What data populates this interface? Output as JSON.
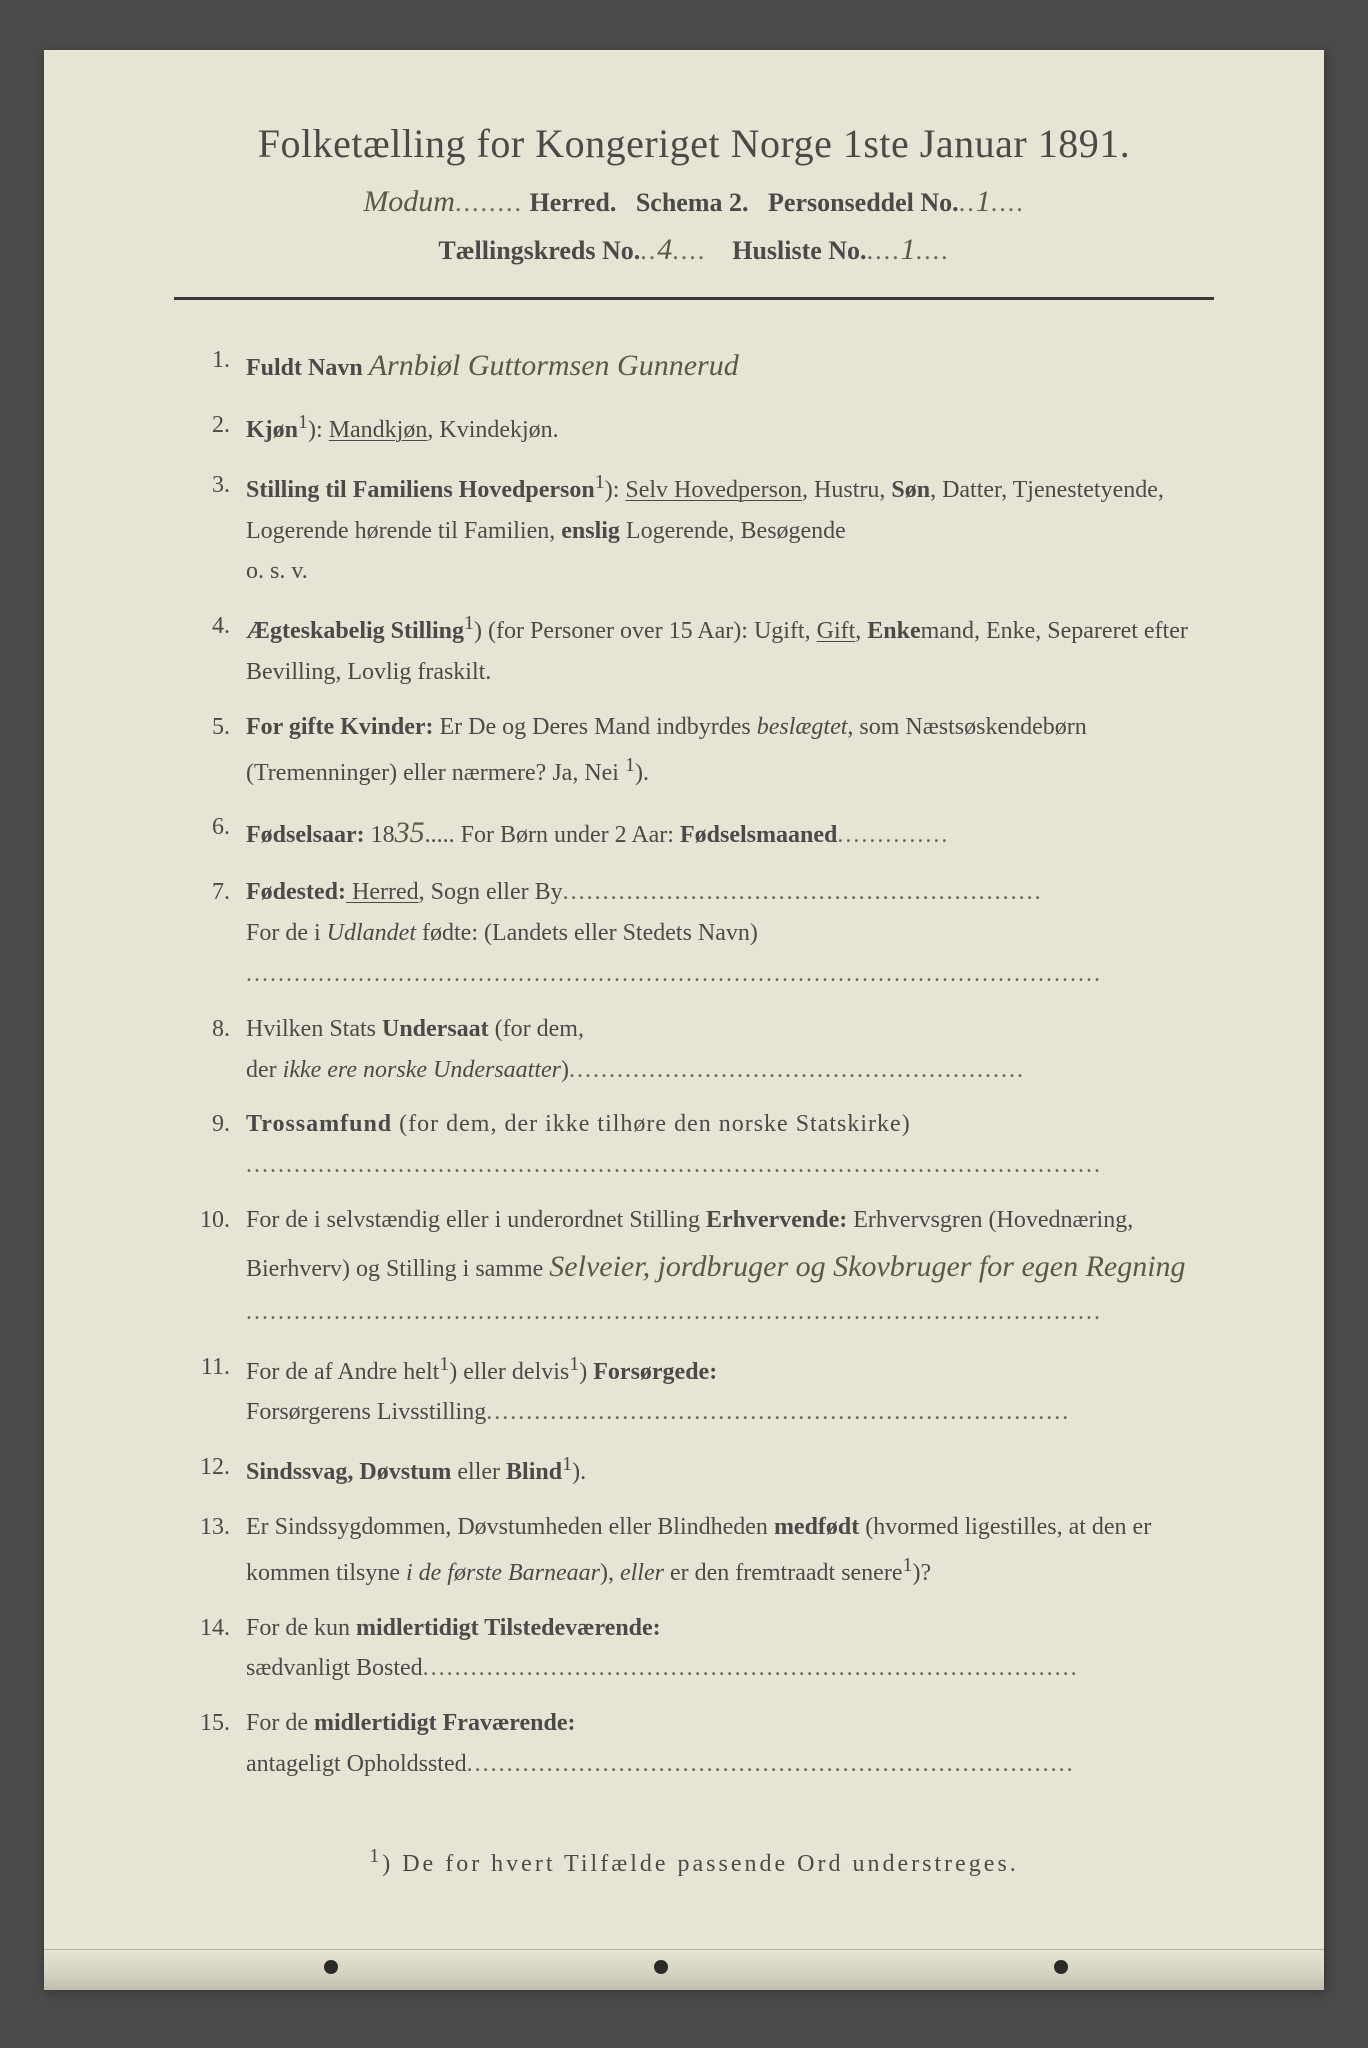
{
  "header": {
    "title": "Folketælling for Kongeriget Norge 1ste Januar 1891.",
    "herred_hw": "Modum",
    "herred_label": "Herred.",
    "schema": "Schema 2.",
    "personseddel_label": "Personseddel No.",
    "personseddel_no": "1",
    "kreds_label": "Tællingskreds No.",
    "kreds_no": "4",
    "husliste_label": "Husliste No.",
    "husliste_no": "1"
  },
  "items": {
    "n1": "1.",
    "q1_label": "Fuldt Navn",
    "q1_hw": "Arnbiøl Guttormsen Gunnerud",
    "n2": "2.",
    "q2_label": "Kjøn",
    "q2_sup": "1",
    "q2_opt1": "Mandkjøn",
    "q2_opt2": ", Kvindekjøn.",
    "n3": "3.",
    "q3_label": "Stilling til Familiens Hovedperson",
    "q3_sup": "1",
    "q3_opt1": "Selv Hovedperson",
    "q3_rest1": ", Hustru, ",
    "q3_bold1": "Søn",
    "q3_rest2": ", Datter, Tjenestetyende, Logerende hørende til Familien, ",
    "q3_bold2": "enslig",
    "q3_rest3": " Logerende, Besøgende",
    "q3_osv": "o. s. v.",
    "n4": "4.",
    "q4_label": "Ægteskabelig Stilling",
    "q4_sup": "1",
    "q4_text1": " (for Personer over 15 Aar): Ugift, ",
    "q4_opt1": "Gift",
    "q4_text2": ", ",
    "q4_bold1": "Enke",
    "q4_text3": "mand, Enke, Separeret efter Bevilling, Lovlig fraskilt.",
    "n5": "5.",
    "q5_label": "For gifte Kvinder:",
    "q5_text1": " Er De og Deres Mand indbyrdes ",
    "q5_italic1": "beslægtet",
    "q5_text2": ", som Næstsøskendebørn (Tremenninger) eller nærmere? Ja, Nei ",
    "q5_sup": "1",
    "n6": "6.",
    "q6_label": "Fødselsaar:",
    "q6_year_prefix": " 18",
    "q6_year_hw": "35",
    "q6_text1": "..... For Børn under 2 Aar: ",
    "q6_bold1": "Fødselsmaaned",
    "n7": "7.",
    "q7_label": "Fødested:",
    "q7_opt1": " Herred",
    "q7_text1": ", Sogn eller By",
    "q7_text2": "For de i ",
    "q7_italic1": "Udlandet",
    "q7_text3": " fødte: (Landets eller Stedets Navn)",
    "n8": "8.",
    "q8_text1": "Hvilken Stats ",
    "q8_bold1": "Undersaat",
    "q8_text2": " (for dem,",
    "q8_text3": "der ",
    "q8_italic1": "ikke ere norske Undersaatter",
    "n9": "9.",
    "q9_bold1": "Trossamfund",
    "q9_text1": " (for dem, der ikke tilhøre den norske Statskirke)",
    "n10": "10.",
    "q10_text1": "For de i selvstændig eller i underordnet Stilling ",
    "q10_bold1": "Erhvervende:",
    "q10_text2": " Erhvervsgren (Hovednæring, Bierhverv) og Stilling i samme",
    "q10_hw": "Selveier, jordbruger og Skovbruger for egen Regning",
    "n11": "11.",
    "q11_text1": "For de af Andre helt",
    "q11_sup1": "1",
    "q11_text2": " eller delvis",
    "q11_sup2": "1",
    "q11_bold1": " Forsørgede:",
    "q11_text3": "Forsørgerens Livsstilling",
    "n12": "12.",
    "q12_bold1": "Sindssvag, Døvstum",
    "q12_text1": " eller ",
    "q12_bold2": "Blind",
    "q12_sup": "1",
    "n13": "13.",
    "q13_text1": "Er Sindssygdommen, Døvstumheden eller Blindheden ",
    "q13_bold1": "medfødt",
    "q13_text2": " (hvormed ligestilles, at den er kommen tilsyne ",
    "q13_italic1": "i de første Barneaar",
    "q13_text3": "), ",
    "q13_italic2": "eller",
    "q13_text4": " er den fremtraadt senere",
    "q13_sup": "1",
    "n14": "14.",
    "q14_text1": "For de kun ",
    "q14_bold1": "midlertidigt Tilstedeværende:",
    "q14_text2": "sædvanligt Bosted",
    "n15": "15.",
    "q15_text1": "For de ",
    "q15_bold1": "midlertidigt Fraværende:",
    "q15_text2": "antageligt Opholdssted"
  },
  "footnote": {
    "sup": "1",
    "text": ") De for hvert Tilfælde passende Ord understreges."
  },
  "colors": {
    "paper": "#e8e4d5",
    "ink": "#4a4a48",
    "background": "#4a4a48"
  }
}
